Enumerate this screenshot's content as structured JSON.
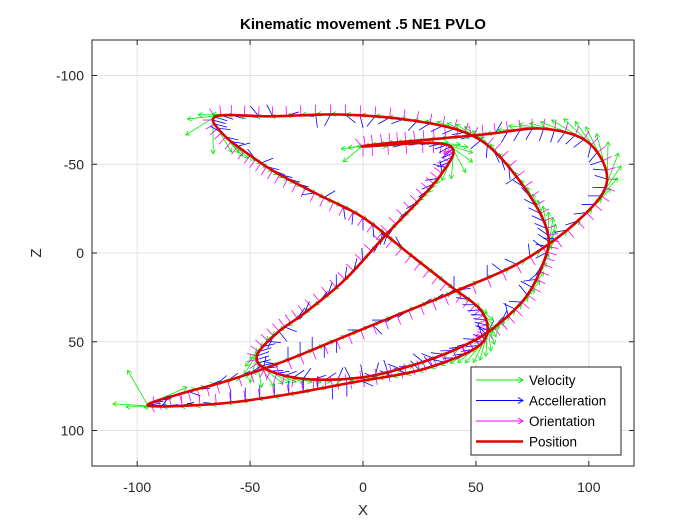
{
  "chart_data": {
    "type": "line",
    "title": "Kinematic movement .5 NE1 PVLO",
    "xlabel": "X",
    "ylabel": "Z",
    "xlim": [
      -120,
      120
    ],
    "ylim": [
      -120,
      120
    ],
    "y_reversed": true,
    "grid": true,
    "x_ticks": [
      -100,
      -50,
      0,
      50,
      100
    ],
    "y_ticks": [
      -100,
      -50,
      0,
      50,
      100
    ],
    "x_tick_labels": [
      "-100",
      "-50",
      "0",
      "50",
      "100"
    ],
    "y_tick_labels": [
      "-100",
      "-50",
      "0",
      "50",
      "100"
    ],
    "legend_position": "bottom-right",
    "series": [
      {
        "name": "Velocity",
        "kind": "quiver",
        "color": "#00ee00"
      },
      {
        "name": "Accelleration",
        "kind": "quiver",
        "color": "#0000ff"
      },
      {
        "name": "Orientation",
        "kind": "quiver",
        "color": "#ff00ff"
      },
      {
        "name": "Position",
        "kind": "line",
        "color": "#e00000",
        "points": [
          [
            0,
            -60
          ],
          [
            30,
            -62
          ],
          [
            40,
            -58
          ],
          [
            35,
            -45
          ],
          [
            25,
            -30
          ],
          [
            10,
            -10
          ],
          [
            -8,
            15
          ],
          [
            -25,
            33
          ],
          [
            -38,
            45
          ],
          [
            -47,
            58
          ],
          [
            -42,
            66
          ],
          [
            -25,
            71
          ],
          [
            0,
            70
          ],
          [
            25,
            62
          ],
          [
            45,
            52
          ],
          [
            58,
            42
          ],
          [
            72,
            25
          ],
          [
            80,
            5
          ],
          [
            82,
            -10
          ],
          [
            75,
            -30
          ],
          [
            60,
            -55
          ],
          [
            45,
            -68
          ],
          [
            20,
            -75
          ],
          [
            -10,
            -78
          ],
          [
            -40,
            -77
          ],
          [
            -65,
            -77
          ],
          [
            -62,
            -67
          ],
          [
            -50,
            -55
          ],
          [
            -38,
            -45
          ],
          [
            -20,
            -33
          ],
          [
            0,
            -20
          ],
          [
            20,
            0
          ],
          [
            38,
            18
          ],
          [
            52,
            32
          ],
          [
            55,
            45
          ],
          [
            48,
            55
          ],
          [
            25,
            66
          ],
          [
            -5,
            73
          ],
          [
            -35,
            80
          ],
          [
            -65,
            85
          ],
          [
            -95,
            86
          ],
          [
            -80,
            79
          ],
          [
            -60,
            72
          ],
          [
            -35,
            61
          ],
          [
            -10,
            48
          ],
          [
            15,
            35
          ],
          [
            40,
            22
          ],
          [
            70,
            5
          ],
          [
            95,
            -18
          ],
          [
            108,
            -40
          ],
          [
            100,
            -62
          ],
          [
            80,
            -70
          ],
          [
            55,
            -67
          ],
          [
            30,
            -64
          ],
          [
            12,
            -62
          ],
          [
            0,
            -60
          ]
        ]
      }
    ]
  }
}
